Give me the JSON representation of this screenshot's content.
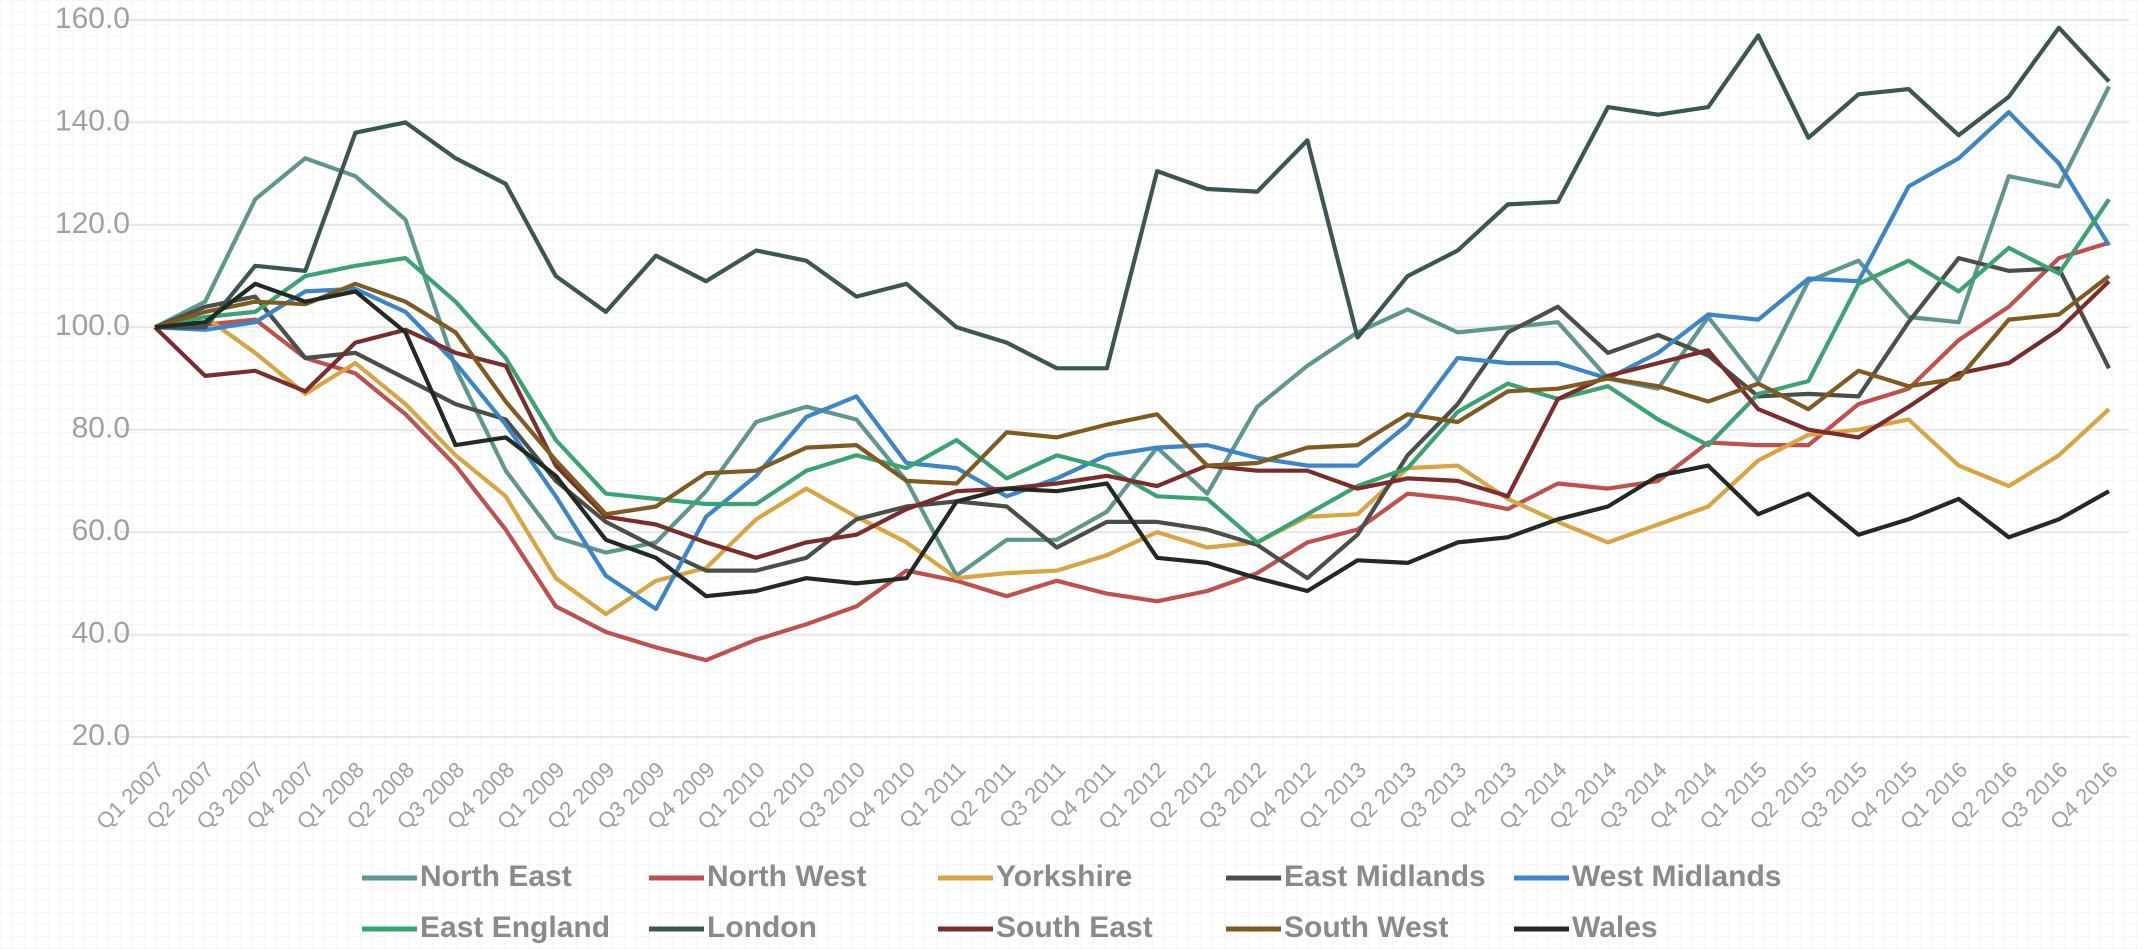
{
  "chart_data": {
    "type": "line",
    "categories": [
      "Q1 2007",
      "Q2 2007",
      "Q3 2007",
      "Q4 2007",
      "Q1 2008",
      "Q2 2008",
      "Q3 2008",
      "Q4 2008",
      "Q1 2009",
      "Q2 2009",
      "Q3 2009",
      "Q4 2009",
      "Q1 2010",
      "Q2 2010",
      "Q3 2010",
      "Q4 2010",
      "Q1 2011",
      "Q2 2011",
      "Q3 2011",
      "Q4 2011",
      "Q1 2012",
      "Q2 2012",
      "Q3 2012",
      "Q4 2012",
      "Q1 2013",
      "Q2 2013",
      "Q3 2013",
      "Q4 2013",
      "Q1 2014",
      "Q2 2014",
      "Q3 2014",
      "Q4 2014",
      "Q1 2015",
      "Q2 2015",
      "Q3 2015",
      "Q4 2015",
      "Q1 2016",
      "Q2 2016",
      "Q3 2016",
      "Q4 2016"
    ],
    "ylim": [
      20,
      160
    ],
    "yticks": [
      {
        "value": 20,
        "label": "20.0"
      },
      {
        "value": 40,
        "label": "40.0"
      },
      {
        "value": 60,
        "label": "60.0"
      },
      {
        "value": 80,
        "label": "80.0"
      },
      {
        "value": 100,
        "label": "100.0"
      },
      {
        "value": 120,
        "label": "120.0"
      },
      {
        "value": 140,
        "label": "140.0"
      },
      {
        "value": 160,
        "label": "160.0"
      }
    ],
    "grid": true,
    "legend": "bottom",
    "series": [
      {
        "name": "North East",
        "color": "#5f9690",
        "values": [
          100,
          105,
          125,
          133,
          129.5,
          121,
          92,
          72,
          59,
          56,
          58,
          68,
          81.5,
          84.5,
          82,
          70,
          51.5,
          58.5,
          58.5,
          64,
          76.5,
          67.5,
          84.5,
          92.5,
          99,
          103.5,
          99,
          100,
          101,
          90,
          88,
          102,
          89.5,
          109,
          113,
          102,
          101,
          129.5,
          127.5,
          147
        ]
      },
      {
        "name": "North West",
        "color": "#c0504d",
        "values": [
          100,
          100.5,
          101.5,
          94,
          91,
          83,
          73,
          60.5,
          45.5,
          40.5,
          37.5,
          35,
          39,
          42,
          45.5,
          52.5,
          50.5,
          47.5,
          50.5,
          48,
          46.5,
          48.5,
          52,
          58,
          60.5,
          67.5,
          66.5,
          64.5,
          69.5,
          68.5,
          70,
          77.5,
          77,
          77,
          85,
          88,
          97.5,
          104,
          113.5,
          116.5
        ]
      },
      {
        "name": "Yorkshire",
        "color": "#d9a441",
        "values": [
          100,
          102,
          95,
          87,
          93,
          85,
          75,
          67,
          51,
          44,
          50.5,
          53,
          62.5,
          68.5,
          63,
          58,
          51,
          52,
          52.5,
          55.5,
          60,
          57,
          58,
          63,
          63.5,
          72.5,
          73,
          66.5,
          62,
          58,
          61.5,
          65,
          74,
          79,
          80,
          82,
          73,
          69,
          75,
          84
        ]
      },
      {
        "name": "East Midlands",
        "color": "#4a4f48",
        "values": [
          100,
          104,
          106,
          94,
          95,
          90,
          85,
          82,
          70,
          62,
          57,
          52.5,
          52.5,
          55,
          62.5,
          65,
          66,
          65,
          57,
          62,
          62,
          60.5,
          57.5,
          51,
          59.5,
          75,
          85,
          99,
          104,
          95,
          98.5,
          94.5,
          86.5,
          87,
          86.5,
          101,
          113.5,
          111,
          111.5,
          92
        ]
      },
      {
        "name": "West Midlands",
        "color": "#3a86c8",
        "values": [
          100,
          99.5,
          101,
          107,
          107.5,
          103,
          93,
          81,
          67,
          51.5,
          45,
          63,
          71,
          82.5,
          86.5,
          73.5,
          72.5,
          67,
          70.5,
          75,
          76.5,
          77,
          74.5,
          73,
          73,
          81,
          94,
          93,
          93,
          90,
          95,
          102.5,
          101.5,
          109.5,
          109,
          127.5,
          133,
          142,
          132,
          116
        ]
      },
      {
        "name": "East England",
        "color": "#3aa373",
        "values": [
          100,
          102,
          103,
          110,
          112,
          113.5,
          105,
          94,
          78,
          67.5,
          66.5,
          65.5,
          65.5,
          72,
          75,
          72.5,
          78,
          70.5,
          75,
          72.5,
          67,
          66.5,
          58,
          63.5,
          69,
          72.5,
          83.5,
          89,
          86,
          88.5,
          82,
          77,
          87,
          89.5,
          108.5,
          113,
          107,
          115.5,
          110.5,
          125
        ]
      },
      {
        "name": "London",
        "color": "#3b5755",
        "values": [
          100,
          100,
          112,
          111,
          138,
          140,
          133,
          128,
          110,
          103,
          114,
          109,
          115,
          113,
          106,
          108.5,
          100,
          97,
          92,
          92,
          130.5,
          127,
          126.5,
          136.5,
          98,
          110,
          115,
          124,
          124.5,
          143,
          141.5,
          143,
          157,
          137,
          145.5,
          146.5,
          137.5,
          145,
          158.5,
          148
        ]
      },
      {
        "name": "South East",
        "color": "#7b2c2c",
        "values": [
          100,
          90.5,
          91.5,
          87.5,
          97,
          99.5,
          95,
          92.5,
          73,
          63,
          61.5,
          58,
          55,
          58,
          59.5,
          64.5,
          68,
          68.5,
          69.5,
          71,
          69,
          73,
          72,
          72,
          68.5,
          70.5,
          70,
          67,
          86,
          90.5,
          93,
          95.5,
          84,
          80,
          78.5,
          84.5,
          91,
          93,
          99.5,
          109
        ]
      },
      {
        "name": "South West",
        "color": "#7f5a21",
        "values": [
          100,
          103,
          105,
          104.5,
          108.5,
          105,
          99,
          85.5,
          74,
          63.5,
          65,
          71.5,
          72,
          76.5,
          77,
          70,
          69.5,
          79.5,
          78.5,
          81,
          83,
          73,
          73.5,
          76.5,
          77,
          83,
          81.5,
          87.5,
          88,
          90,
          88.5,
          85.5,
          89,
          84,
          91.5,
          88.5,
          90,
          101.5,
          102.5,
          110
        ]
      },
      {
        "name": "Wales",
        "color": "#222a24",
        "values": [
          100,
          101,
          108.5,
          105,
          107,
          99,
          77,
          78.5,
          71,
          58.5,
          55,
          47.5,
          48.5,
          51,
          50,
          51,
          66,
          68.5,
          68,
          69.5,
          55,
          54,
          51,
          48.5,
          54.5,
          54,
          58,
          59,
          62.5,
          65,
          71,
          73,
          63.5,
          67.5,
          59.5,
          62.5,
          66.5,
          59,
          62.5,
          68
        ]
      }
    ]
  }
}
